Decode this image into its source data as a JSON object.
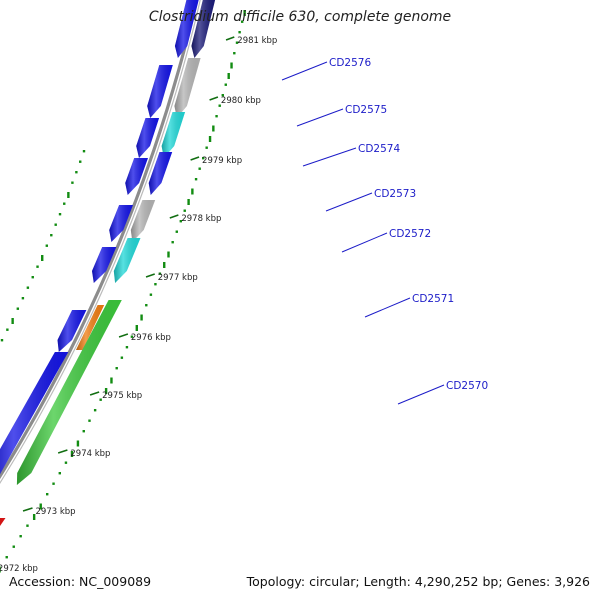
{
  "header": {
    "title": "Clostridium difficile 630, complete genome"
  },
  "footer": {
    "accession": "Accession: NC_009089",
    "summary": "Topology: circular; Length: 4,290,252 bp; Genes: 3,926"
  },
  "colors": {
    "blue_gene": "#1414e6",
    "gray_gene": "#b4b4b4",
    "cyan_gene": "#20d8d8",
    "green_gene": "#3cc83c",
    "orange_gene": "#f07c10",
    "red_gene": "#e01414",
    "navy_gene": "#1c1c7a",
    "backbone": "#8c8c8c",
    "gc_dots": "#128c12",
    "label": "#1c1cc8"
  },
  "ticks": [
    {
      "pos_kbp": 2981,
      "label": "2981 kbp"
    },
    {
      "pos_kbp": 2980,
      "label": "2980 kbp"
    },
    {
      "pos_kbp": 2979,
      "label": "2979 kbp"
    },
    {
      "pos_kbp": 2978,
      "label": "2978 kbp"
    },
    {
      "pos_kbp": 2977,
      "label": "2977 kbp"
    },
    {
      "pos_kbp": 2976,
      "label": "2976 kbp"
    },
    {
      "pos_kbp": 2975,
      "label": "2975 kbp"
    },
    {
      "pos_kbp": 2974,
      "label": "2974 kbp"
    },
    {
      "pos_kbp": 2973,
      "label": "2973 kbp"
    },
    {
      "pos_kbp": 2972,
      "label": "2972 kbp"
    }
  ],
  "gene_labels": [
    "CD2576",
    "CD2575",
    "CD2574",
    "CD2573",
    "CD2572",
    "CD2571",
    "CD2570"
  ]
}
